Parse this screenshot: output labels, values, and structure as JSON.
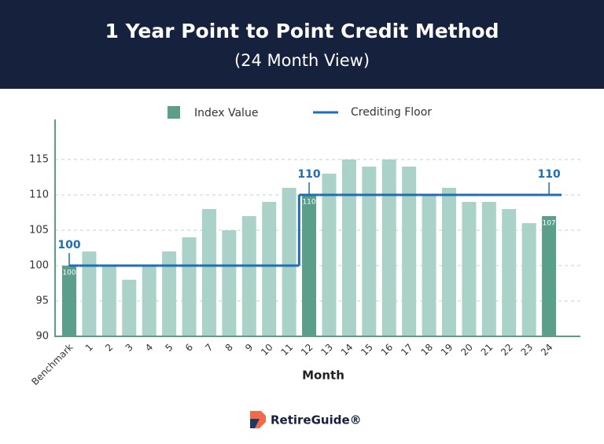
{
  "chart_data": {
    "type": "bar",
    "title": "1 Year Point to Point Credit Method",
    "subtitle": "(24 Month View)",
    "x_label": "Month",
    "brand": "RetireGuide®",
    "categories": [
      "Benchmark",
      "1",
      "2",
      "3",
      "4",
      "5",
      "6",
      "7",
      "8",
      "9",
      "10",
      "11",
      "12",
      "13",
      "14",
      "15",
      "16",
      "17",
      "18",
      "19",
      "20",
      "21",
      "22",
      "23",
      "24"
    ],
    "series": [
      {
        "name": "Index Value",
        "color": "#5a9e8b",
        "faded_color": "#aad2c8",
        "values": [
          100,
          102,
          100,
          98,
          100,
          102,
          104,
          108,
          105,
          107,
          109,
          111,
          110,
          113,
          115,
          114,
          115,
          114,
          110,
          111,
          109,
          109,
          108,
          106,
          107
        ],
        "value_labels": [
          "100",
          null,
          null,
          null,
          null,
          null,
          null,
          null,
          null,
          null,
          null,
          null,
          "110",
          null,
          null,
          null,
          null,
          null,
          null,
          null,
          null,
          null,
          null,
          null,
          "107"
        ]
      },
      {
        "name": "Crediting Floor",
        "type": "step-line",
        "color": "#1f6db3",
        "values": [
          100,
          100,
          100,
          100,
          100,
          100,
          100,
          100,
          100,
          100,
          100,
          100,
          110,
          110,
          110,
          110,
          110,
          110,
          110,
          110,
          110,
          110,
          110,
          110,
          110
        ],
        "value_labels": [
          "100",
          null,
          null,
          null,
          null,
          null,
          null,
          null,
          null,
          null,
          null,
          null,
          "110",
          null,
          null,
          null,
          null,
          null,
          null,
          null,
          null,
          null,
          null,
          null,
          "110"
        ]
      }
    ],
    "ylim": [
      90,
      120
    ],
    "yticks": [
      90,
      95,
      100,
      105,
      110,
      115
    ],
    "grid": true
  }
}
